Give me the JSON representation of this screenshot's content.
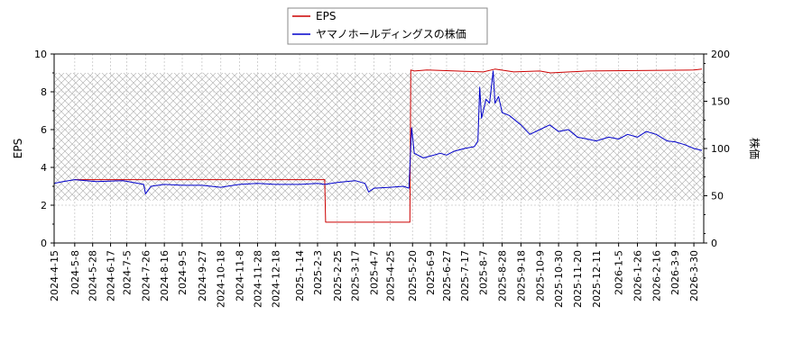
{
  "chart_data": {
    "type": "line",
    "title": "",
    "xlabel": "",
    "ylabel": "EPS",
    "y2label": "株価",
    "ylim": [
      0,
      10
    ],
    "y2lim": [
      0,
      200
    ],
    "yticks": [
      "0",
      "2",
      "4",
      "6",
      "8",
      "10"
    ],
    "y2ticks": [
      "0",
      "50",
      "100",
      "150",
      "200"
    ],
    "xlim": [
      "2024-04-15",
      "2026-04-10"
    ],
    "xticks": [
      "2024-4-15",
      "2024-5-8",
      "2024-5-28",
      "2024-6-17",
      "2024-7-5",
      "2024-7-26",
      "2024-8-16",
      "2024-9-5",
      "2024-9-27",
      "2024-10-18",
      "2024-11-8",
      "2024-11-28",
      "2024-12-18",
      "2025-1-14",
      "2025-2-3",
      "2025-2-25",
      "2025-3-17",
      "2025-4-7",
      "2025-4-25",
      "2025-5-20",
      "2025-6-9",
      "2025-6-27",
      "2025-7-17",
      "2025-8-7",
      "2025-8-28",
      "2025-9-18",
      "2025-10-9",
      "2025-10-30",
      "2025-11-20",
      "2025-12-11",
      "2026-1-5",
      "2026-1-26",
      "2026-2-16",
      "2026-3-9",
      "2026-3-30"
    ],
    "grid": true,
    "hatched_band": [
      2.25,
      9.0
    ],
    "legend": {
      "placement": "top-center"
    },
    "series": [
      {
        "name": "EPS",
        "color": "#cc0000",
        "axis": "left",
        "points": [
          [
            "2024-05-08",
            3.35
          ],
          [
            "2025-02-11",
            3.35
          ],
          [
            "2025-02-12",
            1.1
          ],
          [
            "2025-05-17",
            1.1
          ],
          [
            "2025-05-18",
            9.15
          ],
          [
            "2025-05-22",
            9.1
          ],
          [
            "2025-06-05",
            9.15
          ],
          [
            "2025-08-07",
            9.05
          ],
          [
            "2025-08-20",
            9.2
          ],
          [
            "2025-09-10",
            9.05
          ],
          [
            "2025-10-09",
            9.1
          ],
          [
            "2025-10-21",
            9.0
          ],
          [
            "2025-12-01",
            9.1
          ],
          [
            "2026-03-30",
            9.15
          ],
          [
            "2026-04-08",
            9.2
          ]
        ]
      },
      {
        "name": "ヤマノホールディングスの株価",
        "color": "#0000cc",
        "axis": "right",
        "points": [
          [
            "2024-04-15",
            63
          ],
          [
            "2024-04-25",
            65
          ],
          [
            "2024-05-08",
            67
          ],
          [
            "2024-06-01",
            65
          ],
          [
            "2024-07-01",
            66
          ],
          [
            "2024-07-24",
            62
          ],
          [
            "2024-07-26",
            52
          ],
          [
            "2024-08-01",
            60
          ],
          [
            "2024-08-16",
            62
          ],
          [
            "2024-09-05",
            61
          ],
          [
            "2024-09-27",
            61
          ],
          [
            "2024-10-18",
            59
          ],
          [
            "2024-10-25",
            60
          ],
          [
            "2024-11-08",
            62
          ],
          [
            "2024-11-28",
            63
          ],
          [
            "2024-12-18",
            62
          ],
          [
            "2025-01-14",
            62
          ],
          [
            "2025-02-03",
            63
          ],
          [
            "2025-02-11",
            62
          ],
          [
            "2025-02-25",
            64
          ],
          [
            "2025-03-17",
            66
          ],
          [
            "2025-03-28",
            63
          ],
          [
            "2025-04-01",
            54
          ],
          [
            "2025-04-07",
            58
          ],
          [
            "2025-04-25",
            59
          ],
          [
            "2025-05-10",
            60
          ],
          [
            "2025-05-16",
            58
          ],
          [
            "2025-05-18",
            102
          ],
          [
            "2025-05-19",
            122
          ],
          [
            "2025-05-22",
            95
          ],
          [
            "2025-06-01",
            90
          ],
          [
            "2025-06-09",
            92
          ],
          [
            "2025-06-20",
            95
          ],
          [
            "2025-06-27",
            93
          ],
          [
            "2025-07-05",
            97
          ],
          [
            "2025-07-17",
            100
          ],
          [
            "2025-07-28",
            102
          ],
          [
            "2025-08-01",
            108
          ],
          [
            "2025-08-03",
            165
          ],
          [
            "2025-08-05",
            132
          ],
          [
            "2025-08-10",
            152
          ],
          [
            "2025-08-14",
            148
          ],
          [
            "2025-08-18",
            182
          ],
          [
            "2025-08-20",
            148
          ],
          [
            "2025-08-24",
            155
          ],
          [
            "2025-08-28",
            138
          ],
          [
            "2025-09-05",
            135
          ],
          [
            "2025-09-18",
            125
          ],
          [
            "2025-09-28",
            115
          ],
          [
            "2025-10-09",
            120
          ],
          [
            "2025-10-20",
            125
          ],
          [
            "2025-10-30",
            118
          ],
          [
            "2025-11-10",
            120
          ],
          [
            "2025-11-20",
            112
          ],
          [
            "2025-12-01",
            110
          ],
          [
            "2025-12-11",
            108
          ],
          [
            "2025-12-25",
            112
          ],
          [
            "2026-01-05",
            110
          ],
          [
            "2026-01-15",
            115
          ],
          [
            "2026-01-26",
            112
          ],
          [
            "2026-02-05",
            118
          ],
          [
            "2026-02-16",
            115
          ],
          [
            "2026-02-28",
            108
          ],
          [
            "2026-03-09",
            107
          ],
          [
            "2026-03-20",
            104
          ],
          [
            "2026-03-30",
            100
          ],
          [
            "2026-04-08",
            98
          ]
        ]
      }
    ]
  }
}
